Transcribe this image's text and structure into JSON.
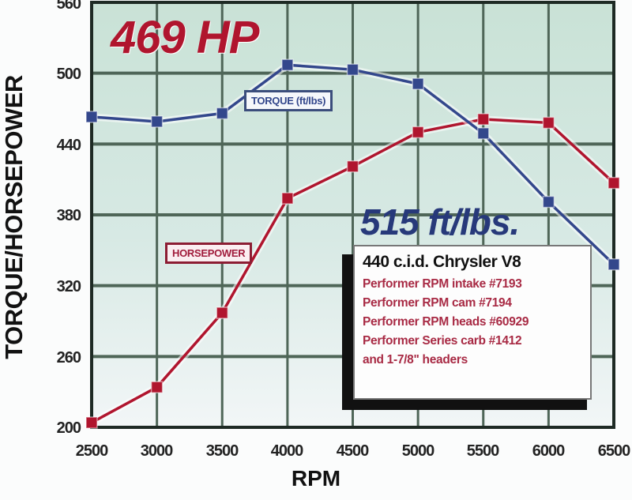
{
  "chart_data": {
    "type": "line",
    "title": "469 HP / 515 ft/lbs.",
    "xlabel": "RPM",
    "ylabel": "TORQUE/HORSEPOWER",
    "x": [
      2500,
      3000,
      3500,
      4000,
      4500,
      5000,
      5500,
      6000,
      6500
    ],
    "xlim": [
      2500,
      6500
    ],
    "ylim": [
      200,
      560
    ],
    "xticks": [
      "2500",
      "3000",
      "3500",
      "4000",
      "4500",
      "5000",
      "5500",
      "6000",
      "6500"
    ],
    "yticks": [
      "200",
      "260",
      "320",
      "380",
      "440",
      "500",
      "560"
    ],
    "grid": true,
    "series": [
      {
        "name": "TORQUE (ft/lbs)",
        "color": "#33478c",
        "values": [
          463,
          459,
          466,
          507,
          503,
          491,
          449,
          391,
          338
        ]
      },
      {
        "name": "HORSEPOWER",
        "color": "#b0152e",
        "values": [
          204,
          234,
          297,
          394,
          421,
          450,
          461,
          458,
          407
        ]
      }
    ],
    "annotations": [
      "469 HP",
      "515 ft/lbs."
    ],
    "plot_background": "#cfe3dc",
    "grid_color": "#4f6658"
  },
  "callouts": {
    "peak_hp": "469 HP",
    "peak_torque": "515 ft/lbs."
  },
  "series_labels": {
    "torque": "TORQUE (ft/lbs)",
    "horsepower": "HORSEPOWER"
  },
  "infobox": {
    "title": "440 c.i.d. Chrysler V8",
    "lines": [
      "Performer RPM intake #7193",
      "Performer RPM cam #7194",
      "Performer RPM heads #60929",
      "Performer Series carb #1412",
      "and 1-7/8\" headers"
    ]
  },
  "axes": {
    "x_title": "RPM",
    "y_title": "TORQUE/HORSEPOWER",
    "x_ticks": [
      "2500",
      "3000",
      "3500",
      "4000",
      "4500",
      "5000",
      "5500",
      "6000",
      "6500"
    ],
    "y_ticks": [
      "560",
      "500",
      "440",
      "380",
      "320",
      "260",
      "200"
    ]
  }
}
